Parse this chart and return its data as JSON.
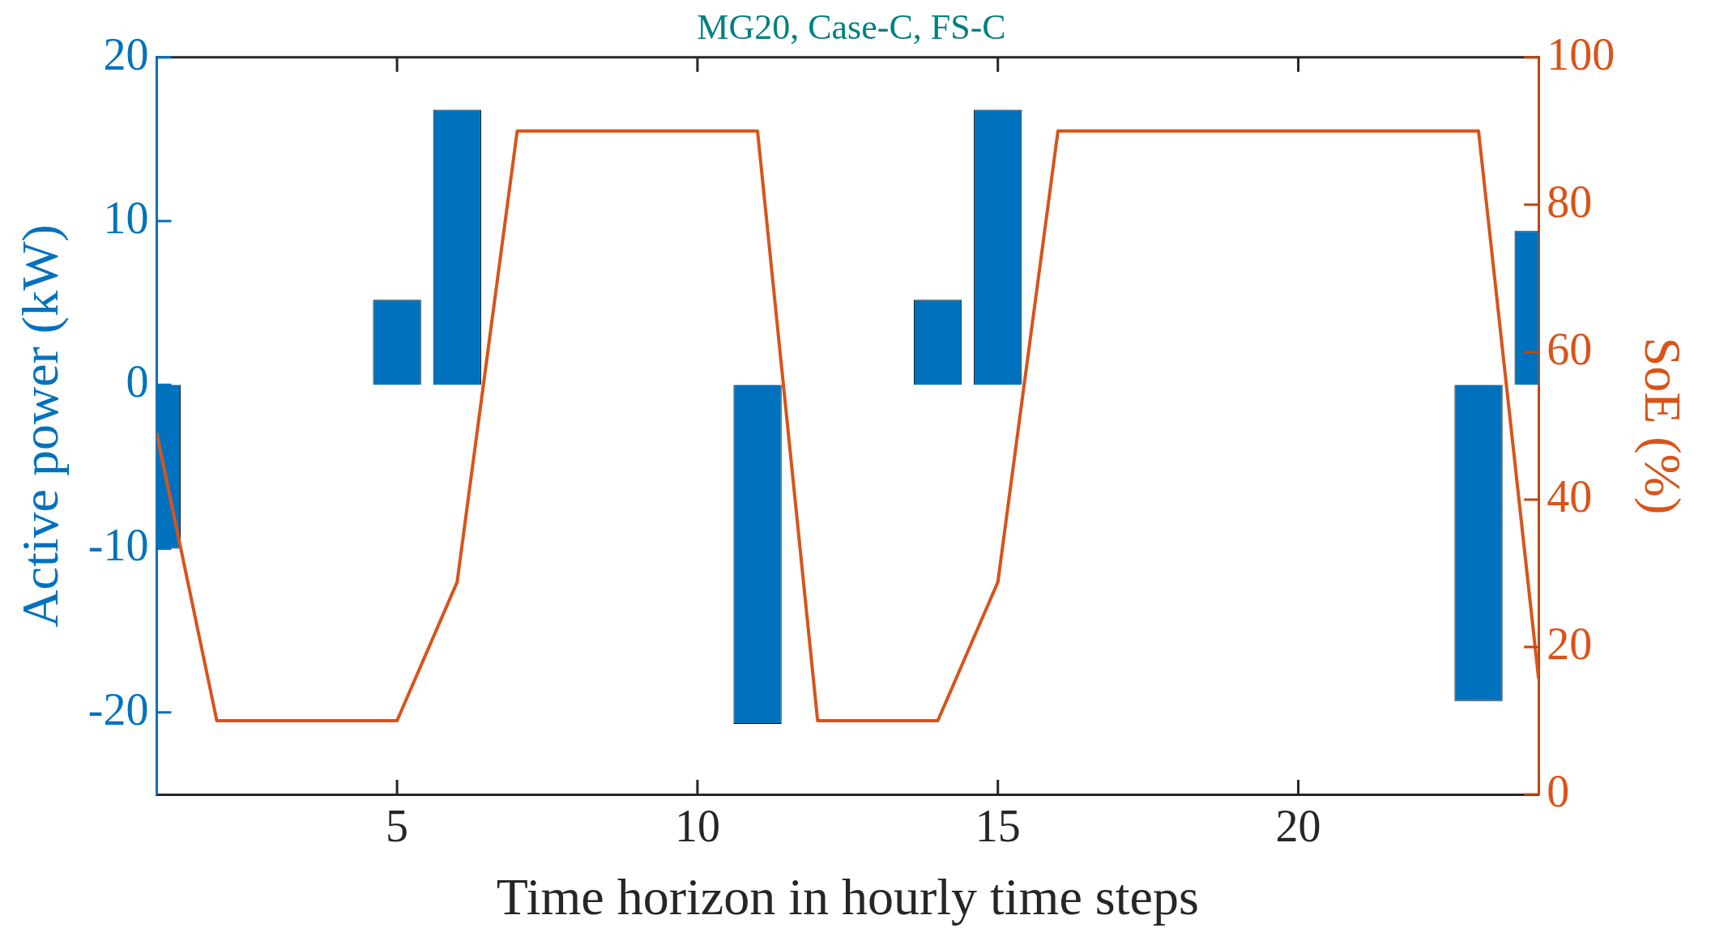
{
  "chart_data": {
    "type": "bar",
    "title": "MG20, Case-C, FS-C",
    "xlabel": "Time horizon in hourly time steps",
    "ylabel": "Active power (kW)",
    "y2label": "SoE (%)",
    "x": [
      1,
      2,
      3,
      4,
      5,
      6,
      7,
      8,
      9,
      10,
      11,
      12,
      13,
      14,
      15,
      16,
      17,
      18,
      19,
      20,
      21,
      22,
      23,
      24
    ],
    "series": [
      {
        "color": "#0072bd",
        "values": [
          -10,
          0,
          0,
          0,
          5.2,
          16.8,
          0,
          0,
          0,
          0,
          -20.7,
          0,
          0,
          5.2,
          16.8,
          0,
          0,
          0,
          0,
          0,
          0,
          0,
          -19.3,
          9.4
        ]
      },
      {
        "type": "line",
        "axis": "y2",
        "color": "#d95319",
        "values": [
          49,
          10,
          10,
          10,
          10,
          28.8,
          90,
          90,
          90,
          90,
          90,
          10,
          10,
          10,
          28.8,
          90,
          90,
          90,
          90,
          90,
          90,
          90,
          90,
          15.7
        ]
      }
    ],
    "xlim": [
      1,
      24
    ],
    "xticks": [
      5,
      10,
      15,
      20
    ],
    "ylim": [
      -25,
      20
    ],
    "yticks": [
      -20,
      -10,
      0,
      10,
      20
    ],
    "y2lim": [
      0,
      100
    ],
    "y2ticks": [
      0,
      20,
      40,
      60,
      80,
      100
    ],
    "grid": false,
    "legend": false,
    "marker": "none",
    "line_style": "solid"
  }
}
